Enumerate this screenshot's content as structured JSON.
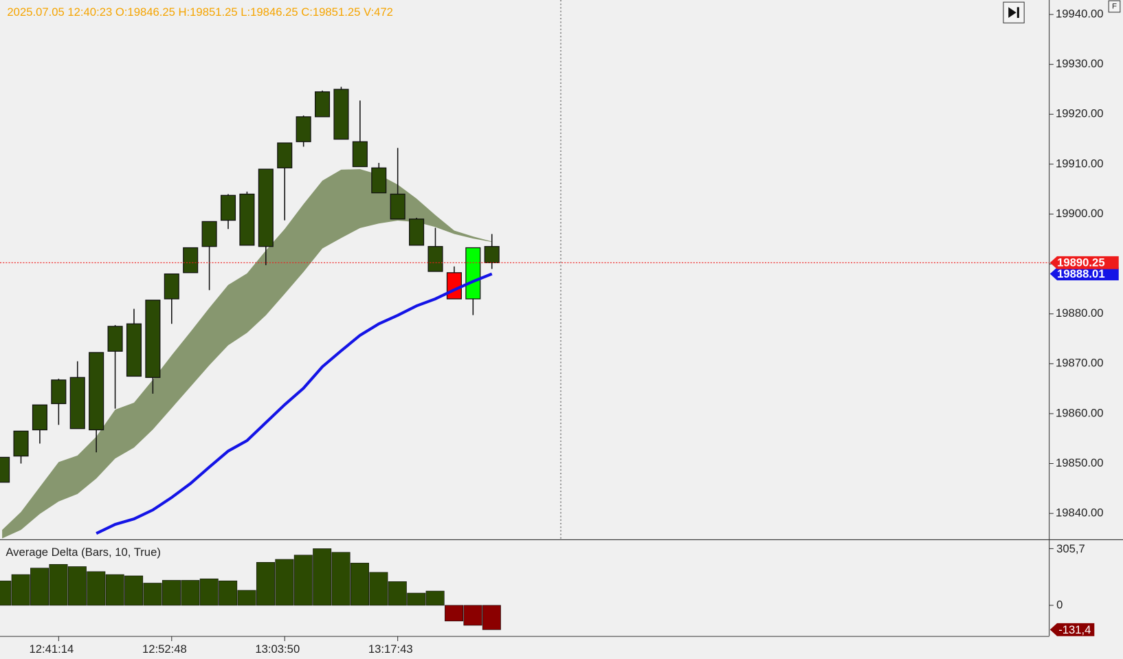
{
  "chart_data": [
    {
      "type": "candlestick",
      "title": "2025.07.05 12:40:23 O:19846.25 H:19851.25 L:19846.25 C:19851.25 V:472",
      "categories": [
        null,
        null,
        null,
        "12:41:14",
        null,
        null,
        null,
        null,
        null,
        "12:52:48",
        null,
        null,
        null,
        null,
        null,
        "13:03:50",
        null,
        null,
        null,
        null,
        null,
        "13:17:43",
        null,
        null,
        null,
        null,
        null
      ],
      "open": [
        19846.25,
        19851.5,
        19856.75,
        19862,
        19857,
        19856.75,
        19872.5,
        19867.5,
        19867.25,
        19883,
        19888.25,
        19893.5,
        19898.75,
        19893.75,
        19893.5,
        19909.25,
        19914.5,
        19919.5,
        19915,
        19914.5,
        19909.25,
        19904,
        19899,
        19893.5,
        19888.25,
        19883,
        19893.5
      ],
      "high": [
        19851.25,
        19856.5,
        19861.75,
        19867,
        19870.5,
        19872.25,
        19877.75,
        19881,
        19882.75,
        19888,
        19893.25,
        19898.5,
        19904,
        19904.5,
        19909,
        19914.25,
        19919.75,
        19924.75,
        19925.5,
        19922.75,
        19910.25,
        19913.25,
        19899.25,
        19897.25,
        19889.5,
        19893.25,
        19896
      ],
      "low": [
        19846.25,
        19850,
        19854,
        19857.75,
        19857,
        19852.25,
        19861,
        19867.5,
        19864,
        19878,
        19888.25,
        19884.75,
        19897,
        19893.75,
        19889.75,
        19898.75,
        19913.5,
        19919.5,
        19915,
        19909.5,
        19904.25,
        19899,
        19893.75,
        19888.5,
        19883,
        19879.75,
        19889
      ],
      "close": [
        19851.25,
        19856.5,
        19861.75,
        19866.75,
        19867.25,
        19872.25,
        19877.5,
        19878,
        19882.75,
        19888,
        19893.25,
        19898.5,
        19903.75,
        19904,
        19909,
        19914.25,
        19919.5,
        19924.5,
        19925,
        19909.5,
        19904.25,
        19899,
        19893.75,
        19888.5,
        19883,
        19893.25,
        19890.25
      ],
      "colors": [
        "#2b4a05",
        "#2b4a05",
        "#2b4a05",
        "#2b4a05",
        "#2b4a05",
        "#2b4a05",
        "#2b4a05",
        "#2b4a05",
        "#2b4a05",
        "#2b4a05",
        "#2b4a05",
        "#2b4a05",
        "#2b4a05",
        "#2b4a05",
        "#2b4a05",
        "#2b4a05",
        "#2b4a05",
        "#2b4a05",
        "#2b4a05",
        "#2b4a05",
        "#2b4a05",
        "#2b4a05",
        "#2b4a05",
        "#2b4a05",
        "#ff0000",
        "#00ff00",
        "#2b4a05"
      ],
      "band": {
        "color": "#87976f",
        "upper": [
          19836.7,
          19840.3,
          19845.3,
          19850.3,
          19851.6,
          19855.4,
          19860.8,
          19862.2,
          19866.8,
          19871.7,
          19876.4,
          19881.2,
          19885.8,
          19888.1,
          19892.7,
          19897,
          19902,
          19906.7,
          19908.9,
          19909,
          19907.9,
          19905.9,
          19903.1,
          19899.8,
          19896.7,
          19895.5,
          19894.5
        ],
        "lower": [
          19835,
          19836.7,
          19839.9,
          19842.4,
          19843.9,
          19847,
          19851,
          19853.2,
          19856.8,
          19861.1,
          19865.4,
          19869.7,
          19873.7,
          19876.2,
          19879.7,
          19884,
          19888.4,
          19893.1,
          19895.2,
          19897.2,
          19898.1,
          19898.7,
          19898.4,
          19897.4,
          19896,
          19895.1,
          19894.4
        ]
      },
      "line": {
        "color": "#1414e6",
        "values": [
          null,
          null,
          null,
          null,
          null,
          19836,
          19837.8,
          19838.9,
          19840.7,
          19843.2,
          19846,
          19849.3,
          19852.5,
          19854.6,
          19858.2,
          19861.8,
          19865.1,
          19869.4,
          19872.6,
          19875.7,
          19878,
          19879.7,
          19881.6,
          19883,
          19884.8,
          19886.5,
          19888.01
        ]
      },
      "price_color": "#ee1c1c",
      "ylim": [
        19834.8,
        19942.9
      ],
      "yticks": [
        {
          "value": 19840,
          "label": "19840.00"
        },
        {
          "value": 19850,
          "label": "19850.00"
        },
        {
          "value": 19860,
          "label": "19860.00"
        },
        {
          "value": 19870,
          "label": "19870.00"
        },
        {
          "value": 19880,
          "label": "19880.00"
        },
        {
          "value": 19890,
          "label": "19890.00"
        },
        {
          "value": 19900,
          "label": "19900.00"
        },
        {
          "value": 19910,
          "label": "19910.00"
        },
        {
          "value": 19920,
          "label": "19920.00"
        },
        {
          "value": 19930,
          "label": "19930.00"
        },
        {
          "value": 19940,
          "label": "19940.00"
        }
      ]
    },
    {
      "type": "bar",
      "title": "Average Delta (Bars, 10, True)",
      "values": [
        131.6,
        166,
        201,
        221,
        209,
        182,
        166,
        159,
        120,
        135,
        135,
        143,
        132,
        81,
        232,
        248,
        271,
        305.7,
        286,
        228,
        178,
        128,
        66,
        77,
        -85,
        -108,
        -131.4
      ],
      "value_labels": [
        null,
        null,
        null,
        null,
        null,
        null,
        null,
        null,
        null,
        null,
        null,
        null,
        null,
        null,
        null,
        null,
        null,
        null,
        null,
        null,
        null,
        null,
        null,
        null,
        null,
        null,
        "-131,4"
      ],
      "up_color": "#2c4a02",
      "down_color": "#8b0000",
      "ylim": [
        -166,
        348
      ],
      "yticks": [
        {
          "value": 305.7,
          "label": "305,7"
        },
        0
      ]
    }
  ]
}
